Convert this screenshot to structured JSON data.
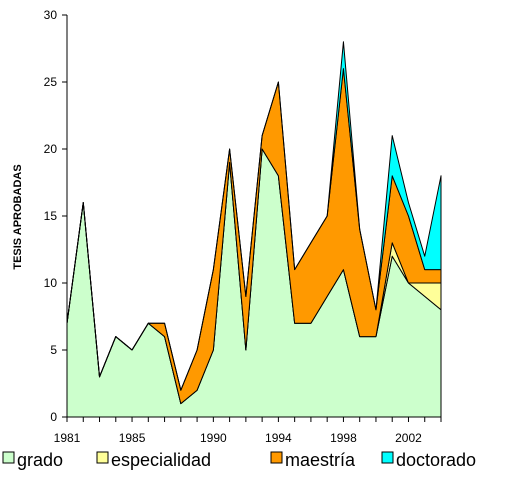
{
  "chart_data": {
    "type": "area",
    "stacked": true,
    "title": "",
    "xlabel": "",
    "ylabel": "TESIS APROBADAS",
    "ylim": [
      0,
      30
    ],
    "xlim": [
      1981,
      2004
    ],
    "yticks": [
      "0",
      "5",
      "10",
      "15",
      "20",
      "25",
      "30"
    ],
    "xticks": [
      {
        "value": 1981,
        "label": "1981"
      },
      {
        "value": 1985,
        "label": "1985"
      },
      {
        "value": 1990,
        "label": "1990"
      },
      {
        "value": 1994,
        "label": "1994"
      },
      {
        "value": 1998,
        "label": "1998"
      },
      {
        "value": 2002,
        "label": "2002"
      }
    ],
    "grid": false,
    "legend_position": "bottom",
    "x": [
      1981,
      1982,
      1983,
      1984,
      1985,
      1986,
      1987,
      1988,
      1989,
      1990,
      1991,
      1992,
      1993,
      1994,
      1995,
      1996,
      1997,
      1998,
      1999,
      2000,
      2001,
      2002,
      2003,
      2004
    ],
    "series": [
      {
        "name": "grado",
        "color": "#ccffcc",
        "values": [
          7,
          16,
          3,
          6,
          5,
          7,
          6,
          1,
          2,
          5,
          19,
          5,
          20,
          18,
          7,
          7,
          9,
          11,
          6,
          6,
          12,
          10,
          9,
          8
        ]
      },
      {
        "name": "especialidad",
        "color": "#ffff99",
        "values": [
          0,
          0,
          0,
          0,
          0,
          0,
          0,
          0,
          0,
          0,
          0,
          0,
          0,
          0,
          0,
          0,
          0,
          0,
          0,
          0,
          1,
          0,
          1,
          2
        ]
      },
      {
        "name": "maestría",
        "color": "#ff9900",
        "values": [
          0,
          0,
          0,
          0,
          0,
          0,
          1,
          1,
          3,
          6,
          1,
          4,
          1,
          7,
          4,
          6,
          6,
          15,
          8,
          2,
          5,
          5,
          1,
          1
        ]
      },
      {
        "name": "doctorado",
        "color": "#00ffff",
        "values": [
          0,
          0,
          0,
          0,
          0,
          0,
          0,
          0,
          0,
          0,
          0,
          0,
          0,
          0,
          0,
          0,
          0,
          2,
          0,
          0,
          3,
          1,
          1,
          7
        ]
      }
    ]
  }
}
